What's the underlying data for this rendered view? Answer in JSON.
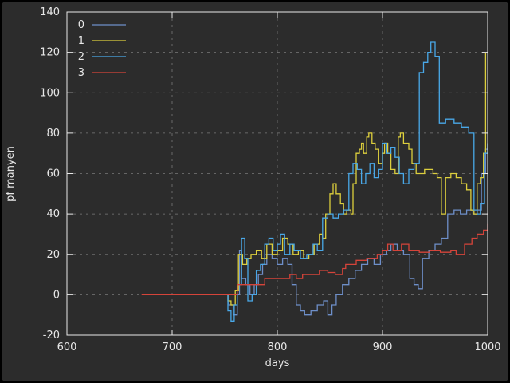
{
  "figure": {
    "background": "#2c2c2c",
    "frame_color": "#e8e8e8",
    "grid_color": "#7a7a7a"
  },
  "chart_data": {
    "type": "line",
    "style": "steps",
    "title": "",
    "xlabel": "days",
    "ylabel": "pf manyen",
    "xlim": [
      600,
      1000
    ],
    "ylim": [
      -20,
      140
    ],
    "xticks": [
      600,
      700,
      800,
      900,
      1000
    ],
    "yticks": [
      -20,
      0,
      20,
      40,
      60,
      80,
      100,
      120,
      140
    ],
    "grid": true,
    "legend_position": "top-left",
    "series": [
      {
        "name": "0",
        "color": "#6e8fc9",
        "points": [
          [
            750,
            0
          ],
          [
            754,
            -5
          ],
          [
            758,
            -10
          ],
          [
            762,
            0
          ],
          [
            764,
            22
          ],
          [
            766,
            8
          ],
          [
            770,
            5
          ],
          [
            774,
            0
          ],
          [
            778,
            5
          ],
          [
            782,
            10
          ],
          [
            786,
            15
          ],
          [
            790,
            20
          ],
          [
            795,
            18
          ],
          [
            800,
            15
          ],
          [
            805,
            18
          ],
          [
            810,
            15
          ],
          [
            814,
            5
          ],
          [
            818,
            -5
          ],
          [
            822,
            -8
          ],
          [
            826,
            -10
          ],
          [
            832,
            -8
          ],
          [
            838,
            -5
          ],
          [
            844,
            -3
          ],
          [
            848,
            -10
          ],
          [
            852,
            -5
          ],
          [
            856,
            0
          ],
          [
            862,
            5
          ],
          [
            868,
            8
          ],
          [
            874,
            12
          ],
          [
            880,
            15
          ],
          [
            886,
            18
          ],
          [
            892,
            15
          ],
          [
            898,
            20
          ],
          [
            904,
            22
          ],
          [
            908,
            25
          ],
          [
            914,
            22
          ],
          [
            920,
            20
          ],
          [
            926,
            8
          ],
          [
            930,
            5
          ],
          [
            934,
            3
          ],
          [
            938,
            18
          ],
          [
            944,
            22
          ],
          [
            950,
            25
          ],
          [
            956,
            28
          ],
          [
            962,
            40
          ],
          [
            968,
            42
          ],
          [
            974,
            40
          ],
          [
            980,
            42
          ],
          [
            986,
            40
          ],
          [
            990,
            42
          ],
          [
            994,
            60
          ],
          [
            998,
            72
          ],
          [
            1000,
            75
          ]
        ]
      },
      {
        "name": "1",
        "color": "#ddcf3d",
        "points": [
          [
            750,
            0
          ],
          [
            753,
            -3
          ],
          [
            756,
            -5
          ],
          [
            760,
            2
          ],
          [
            763,
            20
          ],
          [
            767,
            15
          ],
          [
            771,
            18
          ],
          [
            775,
            20
          ],
          [
            780,
            22
          ],
          [
            785,
            18
          ],
          [
            790,
            25
          ],
          [
            795,
            20
          ],
          [
            800,
            22
          ],
          [
            805,
            28
          ],
          [
            810,
            25
          ],
          [
            815,
            20
          ],
          [
            820,
            22
          ],
          [
            825,
            18
          ],
          [
            830,
            20
          ],
          [
            835,
            25
          ],
          [
            840,
            30
          ],
          [
            843,
            28
          ],
          [
            846,
            40
          ],
          [
            850,
            50
          ],
          [
            853,
            55
          ],
          [
            856,
            50
          ],
          [
            860,
            45
          ],
          [
            863,
            40
          ],
          [
            866,
            42
          ],
          [
            870,
            40
          ],
          [
            872,
            55
          ],
          [
            875,
            70
          ],
          [
            878,
            72
          ],
          [
            880,
            75
          ],
          [
            882,
            70
          ],
          [
            885,
            78
          ],
          [
            887,
            80
          ],
          [
            890,
            75
          ],
          [
            893,
            72
          ],
          [
            896,
            65
          ],
          [
            900,
            70
          ],
          [
            902,
            75
          ],
          [
            905,
            70
          ],
          [
            908,
            62
          ],
          [
            912,
            60
          ],
          [
            915,
            78
          ],
          [
            917,
            80
          ],
          [
            920,
            75
          ],
          [
            925,
            72
          ],
          [
            928,
            65
          ],
          [
            932,
            60
          ],
          [
            940,
            62
          ],
          [
            948,
            60
          ],
          [
            952,
            58
          ],
          [
            956,
            40
          ],
          [
            960,
            58
          ],
          [
            965,
            60
          ],
          [
            970,
            58
          ],
          [
            975,
            55
          ],
          [
            980,
            52
          ],
          [
            984,
            42
          ],
          [
            987,
            40
          ],
          [
            990,
            55
          ],
          [
            993,
            58
          ],
          [
            996,
            70
          ],
          [
            998,
            120
          ]
        ]
      },
      {
        "name": "2",
        "color": "#49a8e8",
        "points": [
          [
            750,
            0
          ],
          [
            753,
            -8
          ],
          [
            756,
            -13
          ],
          [
            759,
            -5
          ],
          [
            762,
            5
          ],
          [
            766,
            28
          ],
          [
            769,
            18
          ],
          [
            772,
            -3
          ],
          [
            776,
            0
          ],
          [
            780,
            12
          ],
          [
            784,
            15
          ],
          [
            788,
            25
          ],
          [
            792,
            28
          ],
          [
            796,
            22
          ],
          [
            800,
            25
          ],
          [
            803,
            30
          ],
          [
            807,
            20
          ],
          [
            812,
            25
          ],
          [
            816,
            22
          ],
          [
            822,
            18
          ],
          [
            828,
            20
          ],
          [
            834,
            25
          ],
          [
            838,
            22
          ],
          [
            843,
            38
          ],
          [
            848,
            40
          ],
          [
            853,
            38
          ],
          [
            858,
            40
          ],
          [
            863,
            42
          ],
          [
            868,
            60
          ],
          [
            872,
            65
          ],
          [
            876,
            62
          ],
          [
            880,
            55
          ],
          [
            884,
            60
          ],
          [
            888,
            65
          ],
          [
            892,
            58
          ],
          [
            896,
            62
          ],
          [
            900,
            75
          ],
          [
            904,
            70
          ],
          [
            908,
            73
          ],
          [
            912,
            68
          ],
          [
            916,
            60
          ],
          [
            920,
            55
          ],
          [
            925,
            62
          ],
          [
            930,
            65
          ],
          [
            935,
            110
          ],
          [
            939,
            115
          ],
          [
            943,
            120
          ],
          [
            946,
            125
          ],
          [
            950,
            118
          ],
          [
            954,
            85
          ],
          [
            960,
            87
          ],
          [
            968,
            85
          ],
          [
            975,
            83
          ],
          [
            982,
            80
          ],
          [
            987,
            42
          ],
          [
            990,
            40
          ],
          [
            993,
            45
          ],
          [
            997,
            70
          ],
          [
            1000,
            75
          ]
        ]
      },
      {
        "name": "3",
        "color": "#d5443a",
        "points": [
          [
            671,
            0
          ],
          [
            758,
            0
          ],
          [
            762,
            5
          ],
          [
            775,
            5
          ],
          [
            788,
            8
          ],
          [
            800,
            8
          ],
          [
            812,
            10
          ],
          [
            818,
            8
          ],
          [
            824,
            10
          ],
          [
            840,
            12
          ],
          [
            848,
            11
          ],
          [
            855,
            10
          ],
          [
            862,
            13
          ],
          [
            865,
            15
          ],
          [
            875,
            17
          ],
          [
            885,
            18
          ],
          [
            895,
            20
          ],
          [
            900,
            22
          ],
          [
            905,
            25
          ],
          [
            910,
            22
          ],
          [
            918,
            25
          ],
          [
            925,
            22
          ],
          [
            935,
            21
          ],
          [
            945,
            22
          ],
          [
            955,
            21
          ],
          [
            965,
            22
          ],
          [
            970,
            20
          ],
          [
            978,
            25
          ],
          [
            985,
            28
          ],
          [
            990,
            30
          ],
          [
            996,
            32
          ],
          [
            1000,
            35
          ]
        ]
      }
    ]
  }
}
